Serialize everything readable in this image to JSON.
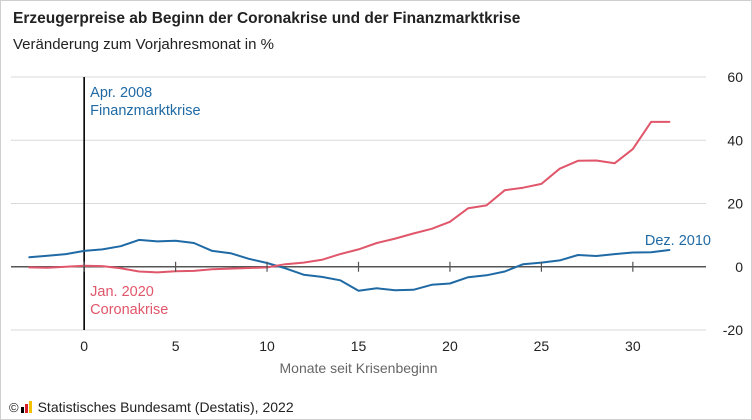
{
  "title": "Erzeugerpreise ab Beginn der Coronakrise und der Finanzmarktkrise",
  "subtitle": "Veränderung zum Vorjahresmonat in %",
  "footer": {
    "copyright_symbol": "©",
    "text": "Statistisches Bundesamt (Destatis), 2022",
    "logo_icon": "destatis-logo-icon"
  },
  "colors": {
    "finanzmarktkrise": "#1f6aa5",
    "coronakrise": "#e0566a",
    "text": "#222222",
    "axis_label": "#666666",
    "grid": "#d9d9d9",
    "zero_line": "#555555",
    "event_line": "#000000"
  },
  "chart_data": {
    "type": "line",
    "title": "Erzeugerpreise ab Beginn der Coronakrise und der Finanzmarktkrise",
    "subtitle": "Veränderung zum Vorjahresmonat in %",
    "xlabel": "Monate seit Krisenbeginn",
    "ylabel": "",
    "xlim": [
      -4,
      34
    ],
    "ylim": [
      -20,
      60
    ],
    "xticks": [
      0,
      5,
      10,
      15,
      20,
      25,
      30
    ],
    "yticks": [
      -20,
      0,
      20,
      40,
      60
    ],
    "y_axis_position": "right",
    "grid": "horizontal",
    "legend": "none",
    "event_line_x": 0,
    "series": [
      {
        "name": "Finanzmarktkrise",
        "color": "#1f6aa5",
        "x": [
          -3,
          -2,
          -1,
          0,
          1,
          2,
          3,
          4,
          5,
          6,
          7,
          8,
          9,
          10,
          11,
          12,
          13,
          14,
          15,
          16,
          17,
          18,
          19,
          20,
          21,
          22,
          23,
          24,
          25,
          26,
          27,
          28,
          29,
          30,
          31,
          32
        ],
        "y": [
          3.0,
          3.5,
          4.0,
          5.0,
          5.5,
          6.5,
          8.5,
          8.0,
          8.2,
          7.5,
          5.0,
          4.3,
          2.5,
          1.2,
          -0.5,
          -2.5,
          -3.2,
          -4.3,
          -7.6,
          -6.8,
          -7.4,
          -7.3,
          -5.7,
          -5.3,
          -3.3,
          -2.7,
          -1.5,
          0.8,
          1.3,
          2.0,
          3.7,
          3.4,
          4.0,
          4.5,
          4.6,
          5.3
        ],
        "annotations": [
          {
            "lines": [
              "Apr. 2008",
              "Finanzmarktkrise"
            ]
          },
          {
            "lines": [
              "Dez. 2010"
            ]
          }
        ]
      },
      {
        "name": "Coronakrise",
        "color": "#e0566a",
        "x": [
          -3,
          -2,
          -1,
          0,
          1,
          2,
          3,
          4,
          5,
          6,
          7,
          8,
          9,
          10,
          11,
          12,
          13,
          14,
          15,
          16,
          17,
          18,
          19,
          20,
          21,
          22,
          23,
          24,
          25,
          26,
          27,
          28,
          29,
          30,
          31,
          32
        ],
        "y": [
          -0.2,
          -0.3,
          0.0,
          0.3,
          0.2,
          -0.5,
          -1.5,
          -1.8,
          -1.4,
          -1.3,
          -0.8,
          -0.6,
          -0.4,
          -0.2,
          0.8,
          1.3,
          2.2,
          4.0,
          5.5,
          7.5,
          8.9,
          10.5,
          12.0,
          14.2,
          18.5,
          19.4,
          24.2,
          25.0,
          26.2,
          31.0,
          33.5,
          33.6,
          32.7,
          37.2,
          45.8,
          45.8
        ],
        "annotations": [
          {
            "lines": [
              "Jan. 2020",
              "Coronakrise"
            ]
          }
        ]
      }
    ]
  }
}
